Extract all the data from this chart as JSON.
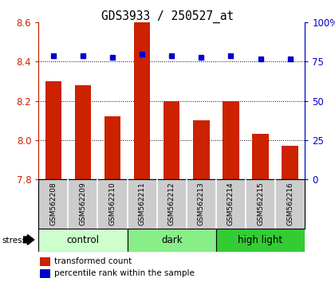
{
  "title": "GDS3933 / 250527_at",
  "samples": [
    "GSM562208",
    "GSM562209",
    "GSM562210",
    "GSM562211",
    "GSM562212",
    "GSM562213",
    "GSM562214",
    "GSM562215",
    "GSM562216"
  ],
  "bar_values": [
    8.3,
    8.28,
    8.12,
    8.6,
    8.2,
    8.1,
    8.2,
    8.03,
    7.97
  ],
  "percentile_values": [
    79,
    79,
    78,
    80,
    79,
    78,
    79,
    77,
    77
  ],
  "ylim_left": [
    7.8,
    8.6
  ],
  "ylim_right": [
    0,
    100
  ],
  "yticks_left": [
    7.8,
    8.0,
    8.2,
    8.4,
    8.6
  ],
  "yticks_right": [
    0,
    25,
    50,
    75,
    100
  ],
  "bar_color": "#cc2200",
  "dot_color": "#0000cc",
  "groups": [
    {
      "label": "control",
      "indices": [
        0,
        1,
        2
      ],
      "color": "#ccffcc"
    },
    {
      "label": "dark",
      "indices": [
        3,
        4,
        5
      ],
      "color": "#88ee88"
    },
    {
      "label": "high light",
      "indices": [
        6,
        7,
        8
      ],
      "color": "#33cc33"
    }
  ],
  "stress_label": "stress",
  "legend_bar_label": "transformed count",
  "legend_dot_label": "percentile rank within the sample",
  "tick_label_color_left": "#cc2200",
  "tick_label_color_right": "#0000cc",
  "bg_sample_row": "#cccccc"
}
